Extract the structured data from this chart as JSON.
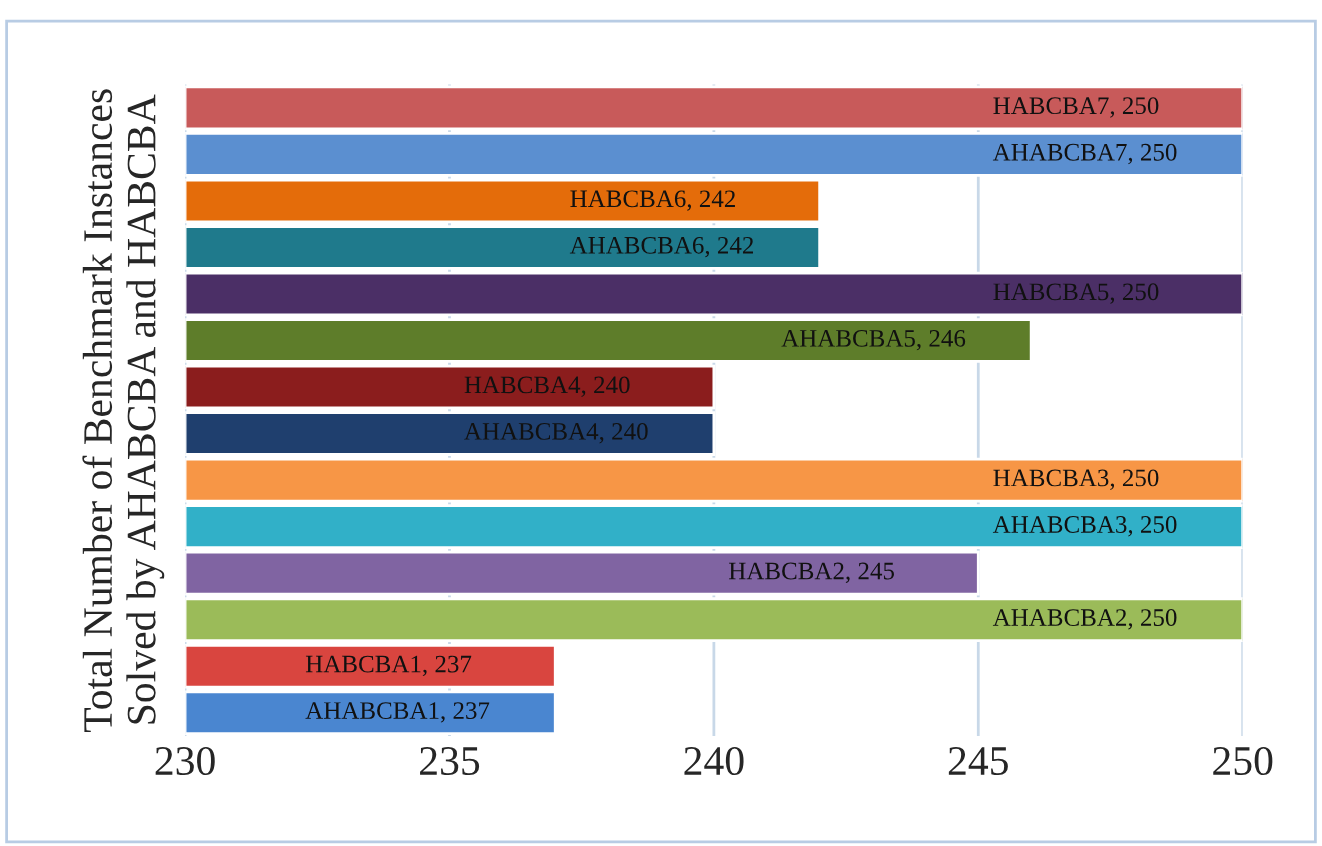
{
  "chart_data": {
    "type": "bar",
    "orientation": "horizontal",
    "ylabel": "Total Number of Benchmark Instances\nSolved by AHABCBA and HABCBA",
    "categories": [
      null,
      null,
      null,
      null,
      null,
      null,
      null,
      null,
      null,
      null,
      null,
      null,
      null,
      null
    ],
    "values": [
      250,
      250,
      242,
      242,
      250,
      246,
      240,
      240,
      250,
      250,
      245,
      250,
      237,
      237
    ],
    "value_labels": [
      "HABCBA7, 250",
      "AHABCBA7, 250",
      "HABCBA6, 242",
      "AHABCBA6, 242",
      "HABCBA5, 250",
      "AHABCBA5, 246",
      "HABCBA4, 240",
      "AHABCBA4, 240",
      "HABCBA3, 250",
      "AHABCBA3, 250",
      "HABCBA2, 245",
      "AHABCBA2, 250",
      "HABCBA1, 237",
      "AHABCBA1, 237"
    ],
    "colors": [
      "#c85a5a",
      "#5b8fd0",
      "#e46c0a",
      "#1f7a8c",
      "#4b2f66",
      "#5e7d2a",
      "#8b1d1d",
      "#1f3f6e",
      "#f79646",
      "#31b0c8",
      "#8064a2",
      "#9bbb59",
      "#d9453f",
      "#4a86d0"
    ],
    "xlim": [
      230,
      250
    ],
    "xticks": [
      230,
      235,
      240,
      245,
      250
    ],
    "grid": "x",
    "legend": false
  }
}
